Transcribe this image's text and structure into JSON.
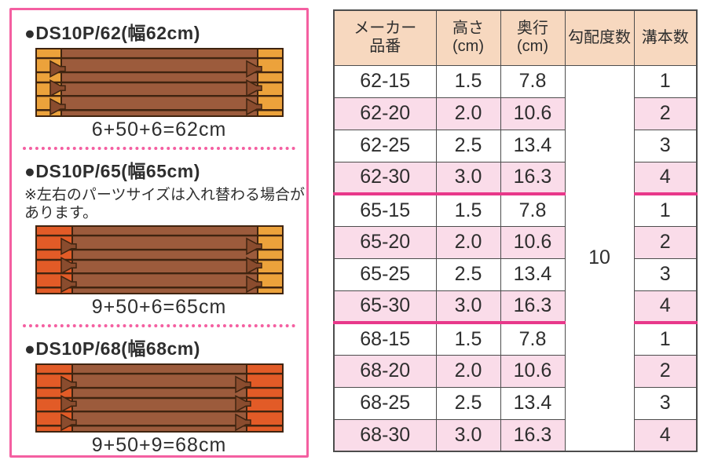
{
  "theme": {
    "panel_border": "#f45fa1",
    "header_bg": "#f7d8bf",
    "row_pink": "#fadce9",
    "magenta": "#e8388a",
    "grid": "#4d4d4d",
    "text": "#2e2e2e"
  },
  "panel": {
    "sections": [
      {
        "title": "●DS10P/62(幅62cm)",
        "note": "",
        "caption": "6+50+6=62cm",
        "left_part_cm": 6,
        "right_part_cm": 6
      },
      {
        "title": "●DS10P/65(幅65cm)",
        "note": "※左右のパーツサイズは入れ替わる場合があります。",
        "caption": "9+50+6=65cm",
        "left_part_cm": 9,
        "right_part_cm": 6
      },
      {
        "title": "●DS10P/68(幅68cm)",
        "note": "",
        "caption": "9+50+9=68cm",
        "left_part_cm": 9,
        "right_part_cm": 9
      }
    ],
    "diagram_colors": {
      "body": "#9c5b3c",
      "part6": "#eca23b",
      "part9": "#e25b27",
      "groove": "#3f2410",
      "tab": "#8a4c2e"
    }
  },
  "table": {
    "headers": [
      {
        "line1": "メーカー",
        "line2": "品番"
      },
      {
        "line1": "高さ",
        "line2": "(cm)"
      },
      {
        "line1": "奥行",
        "line2": "(cm)"
      },
      {
        "line1": "勾配度数",
        "line2": ""
      },
      {
        "line1": "溝本数",
        "line2": ""
      }
    ],
    "slope_value": "10",
    "rows": [
      {
        "part_no": "62-15",
        "height": "1.5",
        "depth": "7.8",
        "grooves": "1"
      },
      {
        "part_no": "62-20",
        "height": "2.0",
        "depth": "10.6",
        "grooves": "2"
      },
      {
        "part_no": "62-25",
        "height": "2.5",
        "depth": "13.4",
        "grooves": "3"
      },
      {
        "part_no": "62-30",
        "height": "3.0",
        "depth": "16.3",
        "grooves": "4"
      },
      {
        "part_no": "65-15",
        "height": "1.5",
        "depth": "7.8",
        "grooves": "1"
      },
      {
        "part_no": "65-20",
        "height": "2.0",
        "depth": "10.6",
        "grooves": "2"
      },
      {
        "part_no": "65-25",
        "height": "2.5",
        "depth": "13.4",
        "grooves": "3"
      },
      {
        "part_no": "65-30",
        "height": "3.0",
        "depth": "16.3",
        "grooves": "4"
      },
      {
        "part_no": "68-15",
        "height": "1.5",
        "depth": "7.8",
        "grooves": "1"
      },
      {
        "part_no": "68-20",
        "height": "2.0",
        "depth": "10.6",
        "grooves": "2"
      },
      {
        "part_no": "68-25",
        "height": "2.5",
        "depth": "13.4",
        "grooves": "3"
      },
      {
        "part_no": "68-30",
        "height": "3.0",
        "depth": "16.3",
        "grooves": "4"
      }
    ]
  }
}
